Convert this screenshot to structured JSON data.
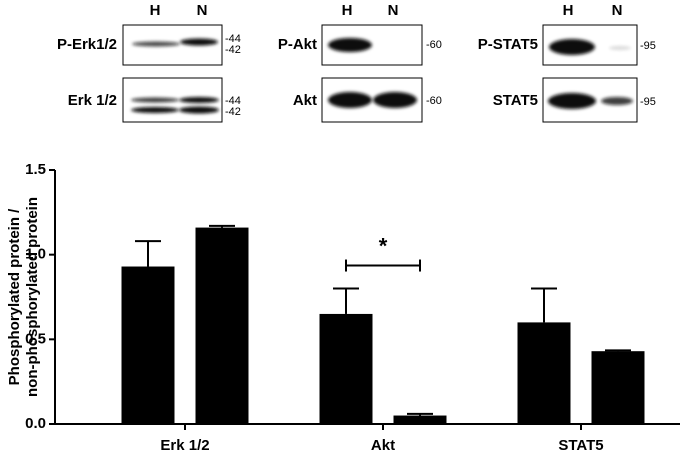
{
  "blots": [
    {
      "lanes": [
        "H",
        "N"
      ],
      "rows": [
        {
          "label": "P-Erk1/2",
          "markers": [
            "-44",
            "-42"
          ]
        },
        {
          "label": "Erk 1/2",
          "markers": [
            "-44",
            "-42"
          ]
        }
      ]
    },
    {
      "lanes": [
        "H",
        "N"
      ],
      "rows": [
        {
          "label": "P-Akt",
          "markers": [
            "-60"
          ]
        },
        {
          "label": "Akt",
          "markers": [
            "-60"
          ]
        }
      ]
    },
    {
      "lanes": [
        "H",
        "N"
      ],
      "rows": [
        {
          "label": "P-STAT5",
          "markers": [
            "-95"
          ]
        },
        {
          "label": "STAT5",
          "markers": [
            "-95"
          ]
        }
      ]
    }
  ],
  "chart_data": {
    "type": "bar",
    "ylabel": [
      "Phosphorylated protein /",
      "non-phosphorylated protein"
    ],
    "categories": [
      "Erk 1/2",
      "Akt",
      "STAT5"
    ],
    "series": [
      {
        "color": "#000000",
        "values": [
          0.93,
          0.65,
          0.6
        ],
        "errors": [
          0.15,
          0.15,
          0.2
        ]
      },
      {
        "color": "#000000",
        "values": [
          1.16,
          0.05,
          0.43
        ],
        "errors": [
          0.01,
          0.01,
          0.005
        ]
      }
    ],
    "ylim": [
      0,
      1.5
    ],
    "yticks": [
      {
        "value": 0,
        "label": "0.0"
      },
      {
        "value": 0.5,
        "label": "0.5"
      },
      {
        "value": 1,
        "label": "1.0"
      },
      {
        "value": 1.5,
        "label": "1.5"
      }
    ],
    "annotations": [
      {
        "text": "*",
        "category": 1
      }
    ]
  }
}
